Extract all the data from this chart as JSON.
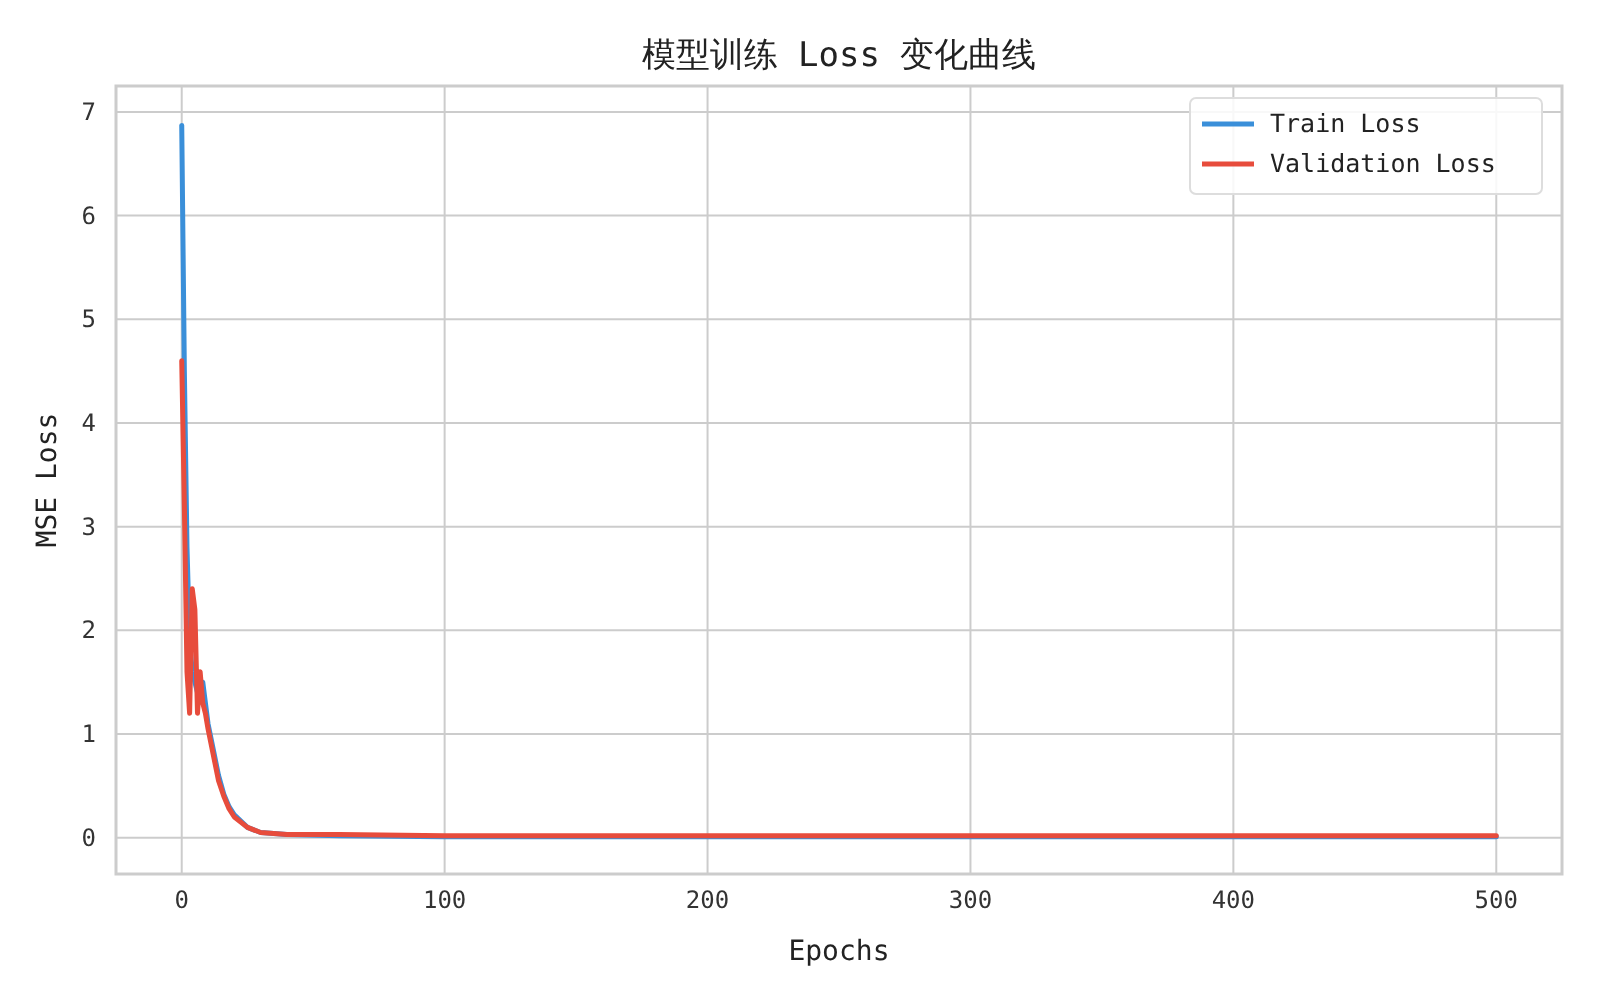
{
  "chart_data": {
    "type": "line",
    "title": "模型训练 Loss 变化曲线",
    "xlabel": "Epochs",
    "ylabel": "MSE Loss",
    "xlim": [
      -25,
      525
    ],
    "xticks": [
      0,
      100,
      200,
      300,
      400,
      500
    ],
    "ylim": [
      -0.35,
      7.25
    ],
    "yticks": [
      0,
      1,
      2,
      3,
      4,
      5,
      6,
      7
    ],
    "grid": true,
    "legend": "top right",
    "line_style": "solid",
    "series": [
      {
        "name": "Train Loss",
        "color": "#3a8fd9",
        "x": [
          0,
          1,
          2,
          3,
          4,
          5,
          6,
          7,
          8,
          9,
          10,
          12,
          14,
          16,
          18,
          20,
          25,
          30,
          40,
          60,
          100,
          200,
          300,
          400,
          500
        ],
        "values": [
          6.87,
          4.5,
          2.8,
          1.9,
          1.6,
          1.5,
          1.4,
          1.45,
          1.5,
          1.3,
          1.1,
          0.85,
          0.6,
          0.42,
          0.3,
          0.22,
          0.1,
          0.05,
          0.03,
          0.02,
          0.01,
          0.01,
          0.01,
          0.01,
          0.01
        ]
      },
      {
        "name": "Validation Loss",
        "color": "#e74c3c",
        "x": [
          0,
          1,
          2,
          3,
          4,
          5,
          6,
          7,
          8,
          9,
          10,
          12,
          14,
          16,
          18,
          20,
          25,
          30,
          40,
          60,
          100,
          200,
          300,
          400,
          500
        ],
        "values": [
          4.6,
          3.2,
          1.6,
          1.2,
          2.4,
          2.2,
          1.2,
          1.6,
          1.3,
          1.2,
          1.05,
          0.8,
          0.55,
          0.4,
          0.28,
          0.2,
          0.1,
          0.05,
          0.03,
          0.03,
          0.02,
          0.02,
          0.02,
          0.02,
          0.02
        ]
      }
    ]
  }
}
